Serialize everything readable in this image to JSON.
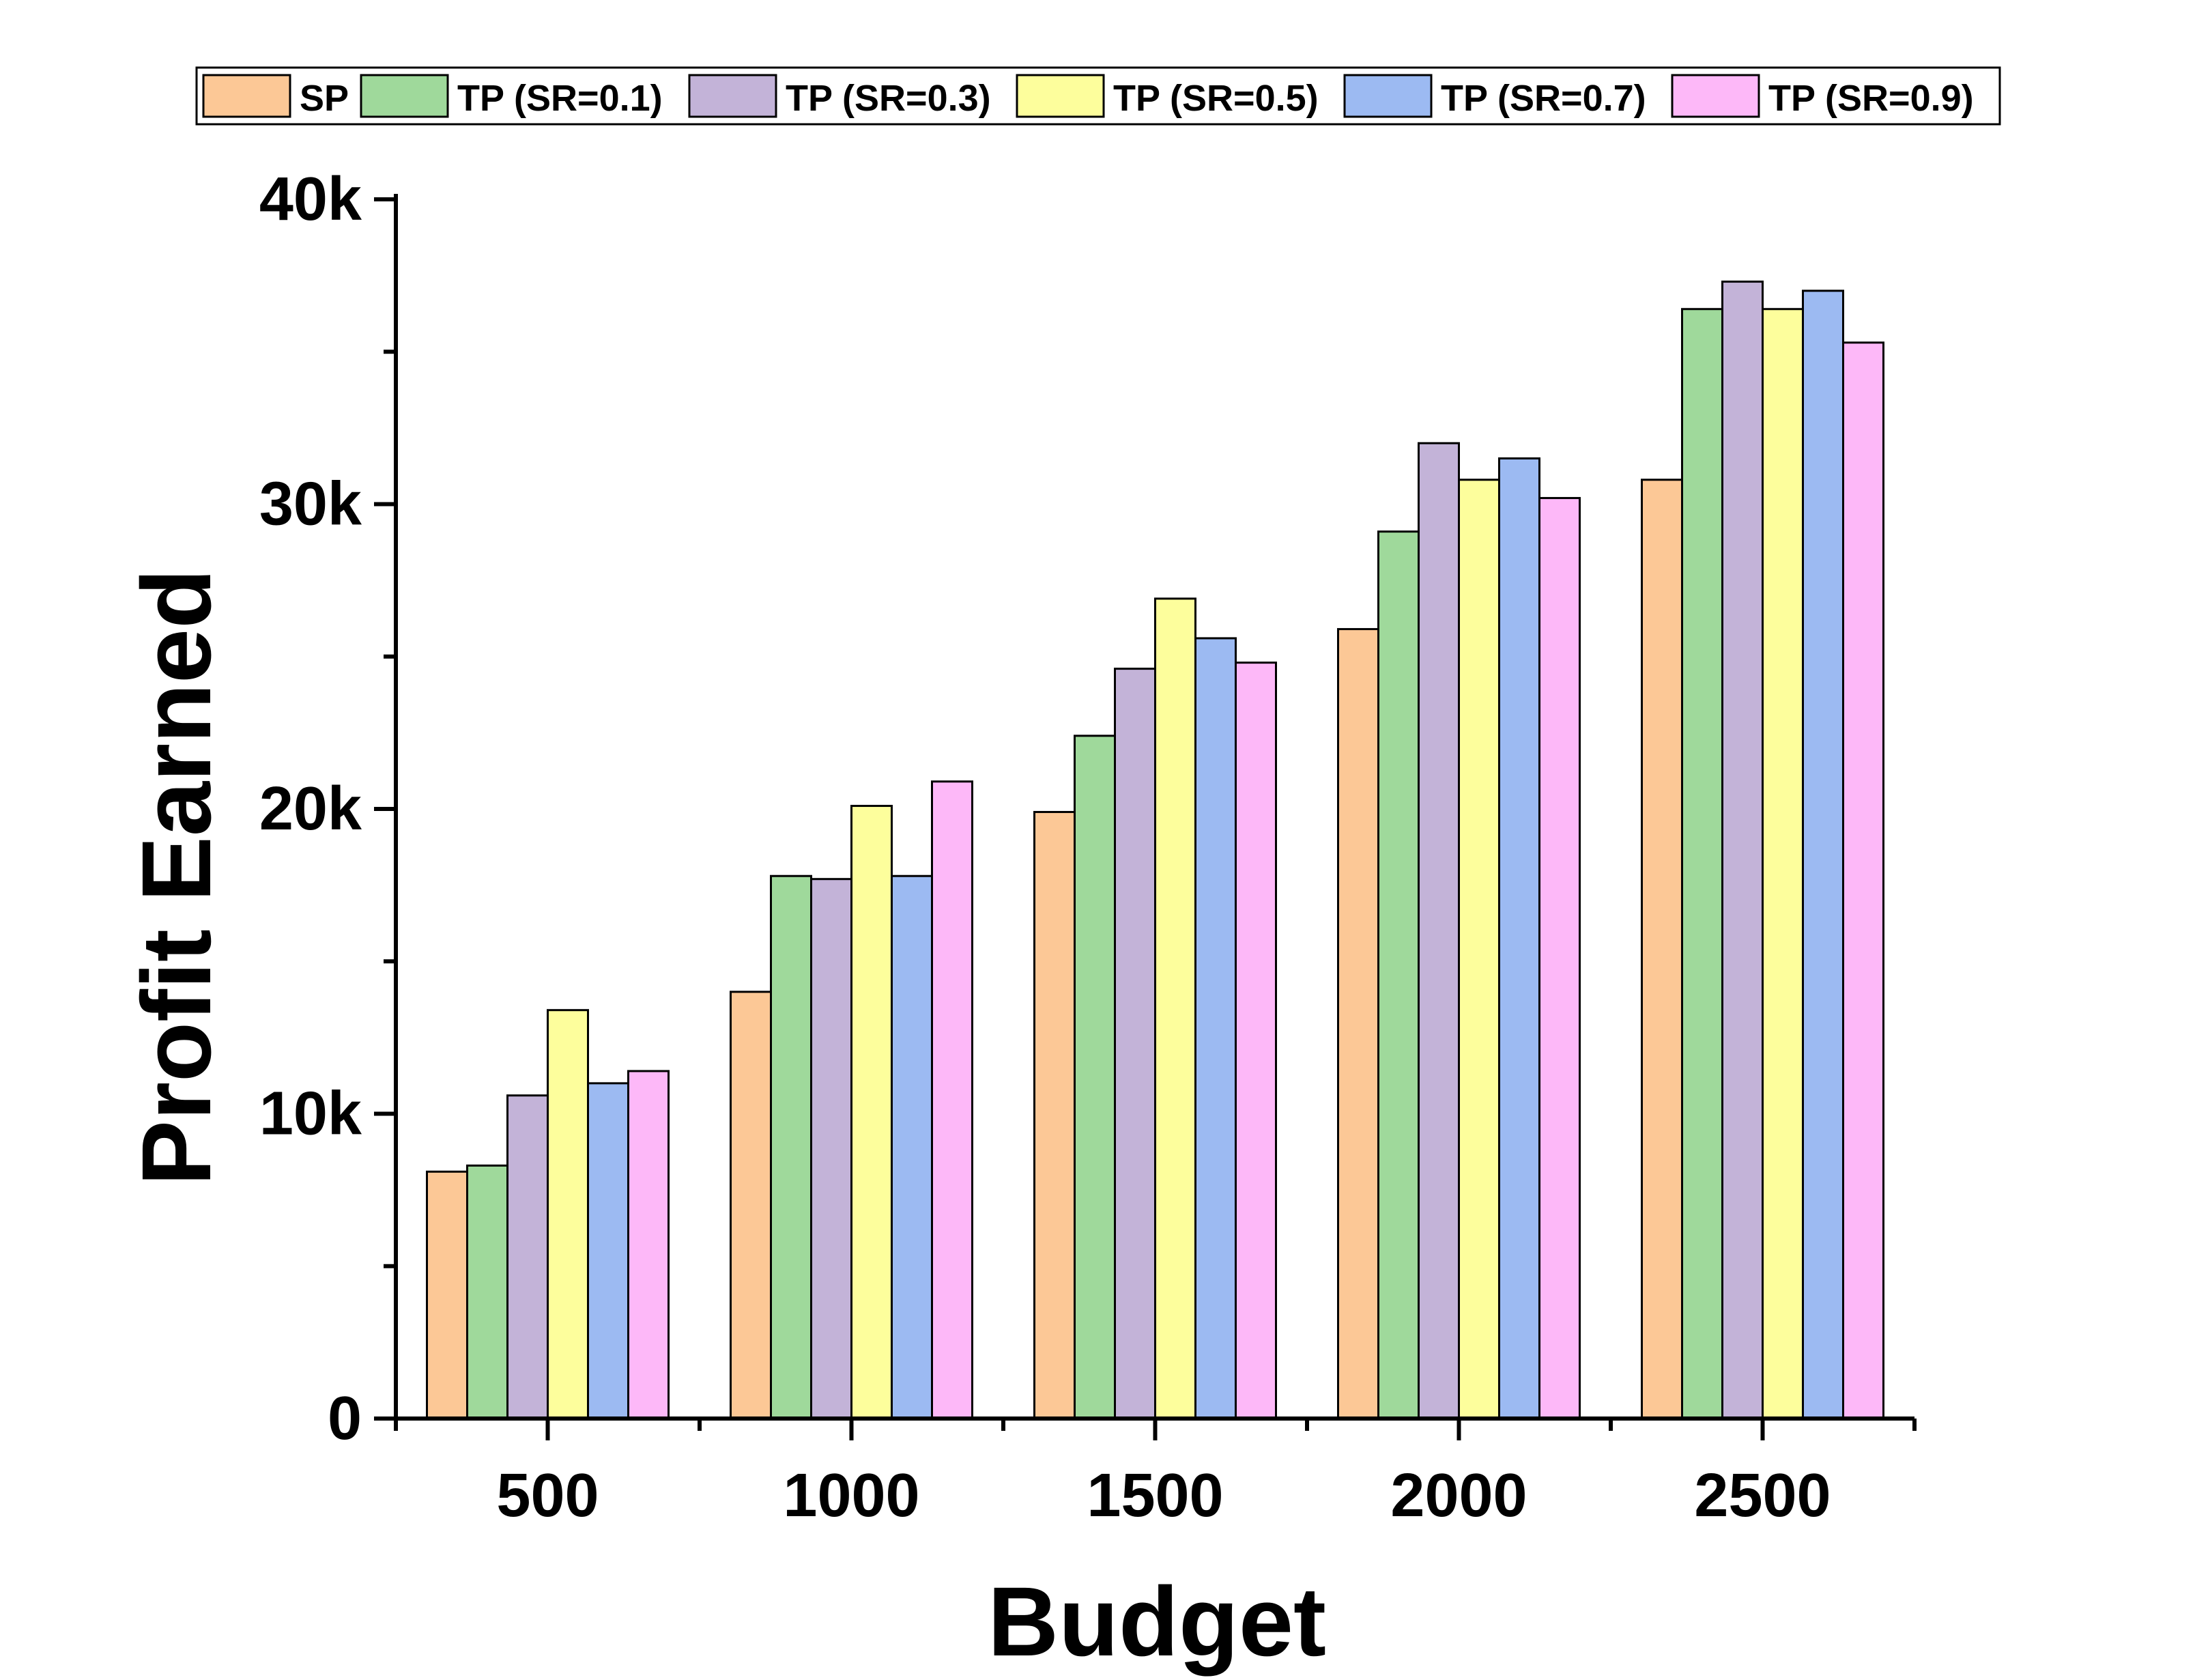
{
  "chart_data": {
    "type": "bar",
    "xlabel": "Budget",
    "ylabel": "Profit Earned",
    "categories": [
      "500",
      "1000",
      "1500",
      "2000",
      "2500"
    ],
    "ylim": [
      0,
      40000
    ],
    "yticks": [
      {
        "value": 0,
        "label": "0"
      },
      {
        "value": 10000,
        "label": "10k"
      },
      {
        "value": 20000,
        "label": "20k"
      },
      {
        "value": 30000,
        "label": "30k"
      },
      {
        "value": 40000,
        "label": "40k"
      }
    ],
    "grid": false,
    "legend_position": "top",
    "series": [
      {
        "name": "SP",
        "color": "#FCC896",
        "values": [
          8100,
          14000,
          19900,
          25900,
          30800
        ]
      },
      {
        "name": "TP (SR=0.1)",
        "color": "#9FD99B",
        "values": [
          8300,
          17800,
          22400,
          29100,
          36400
        ]
      },
      {
        "name": "TP (SR=0.3)",
        "color": "#C3B3D8",
        "values": [
          10600,
          17700,
          24600,
          32000,
          37300
        ]
      },
      {
        "name": "TP (SR=0.5)",
        "color": "#FDFE9C",
        "values": [
          13400,
          20100,
          26900,
          30800,
          36400
        ]
      },
      {
        "name": "TP (SR=0.7)",
        "color": "#9CBAF2",
        "values": [
          11000,
          17800,
          25600,
          31500,
          37000
        ]
      },
      {
        "name": "TP (SR=0.9)",
        "color": "#FDB8F8",
        "values": [
          11400,
          20900,
          24800,
          30200,
          35300
        ]
      }
    ]
  }
}
